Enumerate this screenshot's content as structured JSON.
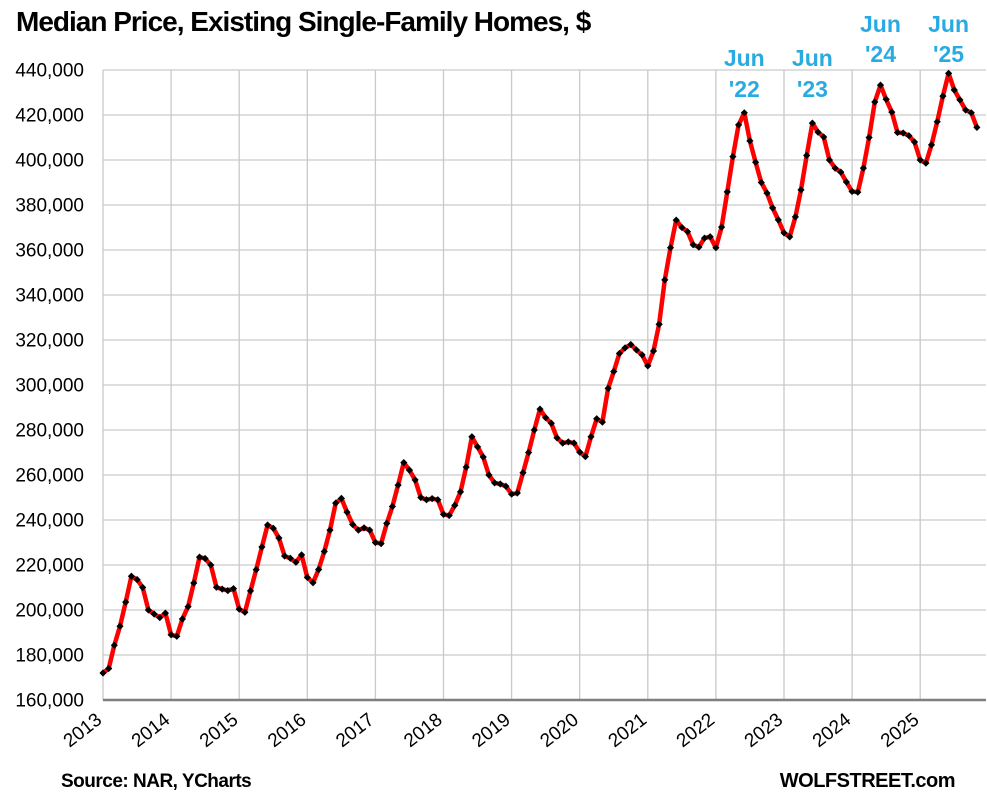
{
  "page": {
    "background": "#ffffff"
  },
  "footer": {
    "source": "Source: NAR, YCharts",
    "brand": "WOLFSTREET.com"
  },
  "chart_data": {
    "type": "line",
    "title": "Median Price, Existing Single-Family Homes, $",
    "x_unit": "month",
    "x_start": "2013-01",
    "x_end": "2025-11",
    "x_tick_labels": [
      "2013",
      "2014",
      "2015",
      "2016",
      "2017",
      "2018",
      "2019",
      "2020",
      "2021",
      "2022",
      "2023",
      "2024",
      "2025"
    ],
    "ylim": [
      160000,
      440000
    ],
    "y_tick_interval": 20000,
    "y_tick_labels": [
      "160,000",
      "180,000",
      "200,000",
      "220,000",
      "240,000",
      "260,000",
      "280,000",
      "300,000",
      "320,000",
      "340,000",
      "360,000",
      "380,000",
      "400,000",
      "420,000",
      "440,000"
    ],
    "grid": true,
    "legend": "none",
    "colors": {
      "grid": "#c9c9c9",
      "axis": "#7f7f7f",
      "text": "#000000",
      "annotation": "#29abe2"
    },
    "series": [
      {
        "name": "Median price, existing single-family homes, $",
        "color": "#ff0000",
        "marker": "diamond",
        "marker_color": "#000000",
        "values": [
          172000,
          174000,
          184300,
          192800,
          203500,
          215000,
          213500,
          210000,
          200000,
          198200,
          196600,
          198600,
          189000,
          188300,
          196000,
          201500,
          212000,
          223500,
          222900,
          220000,
          210100,
          209300,
          208600,
          209500,
          200400,
          199000,
          208500,
          217900,
          228000,
          237800,
          236300,
          232000,
          224000,
          223000,
          221200,
          224500,
          214500,
          212100,
          218000,
          226000,
          235500,
          247500,
          249600,
          243500,
          238000,
          235500,
          236500,
          235500,
          230000,
          229500,
          238500,
          246000,
          255500,
          265500,
          262200,
          257800,
          250000,
          249000,
          249500,
          249000,
          242500,
          242000,
          246500,
          252500,
          263500,
          277000,
          272500,
          268000,
          260000,
          256500,
          256000,
          255000,
          251500,
          252000,
          261000,
          270000,
          280000,
          289300,
          285500,
          283000,
          276500,
          274200,
          274700,
          274200,
          270200,
          268200,
          277000,
          285000,
          283500,
          298500,
          306000,
          314000,
          316500,
          318000,
          315600,
          313400,
          308500,
          315100,
          327000,
          346700,
          361000,
          373300,
          370000,
          368200,
          362300,
          361300,
          365300,
          365900,
          361000,
          370200,
          385800,
          401500,
          415600,
          421000,
          408500,
          399000,
          390000,
          385300,
          378700,
          373400,
          367600,
          365800,
          374700,
          386700,
          402000,
          416400,
          412400,
          410200,
          400000,
          396400,
          394600,
          390200,
          386000,
          385700,
          396400,
          410000,
          425800,
          433300,
          427000,
          421300,
          412200,
          412000,
          410800,
          408000,
          400000,
          398600,
          406700,
          417000,
          428400,
          438500,
          431100,
          426700,
          422200,
          421000,
          414500
        ]
      }
    ],
    "annotations": [
      {
        "lines": [
          "Jun",
          "'22"
        ],
        "x": "2022-06",
        "level": "lower",
        "color": "#29abe2"
      },
      {
        "lines": [
          "Jun",
          "'23"
        ],
        "x": "2023-06",
        "level": "lower",
        "color": "#29abe2"
      },
      {
        "lines": [
          "Jun",
          "'24"
        ],
        "x": "2024-06",
        "level": "upper",
        "color": "#29abe2"
      },
      {
        "lines": [
          "Jun",
          "'25"
        ],
        "x": "2025-06",
        "level": "upper",
        "color": "#29abe2"
      }
    ]
  }
}
